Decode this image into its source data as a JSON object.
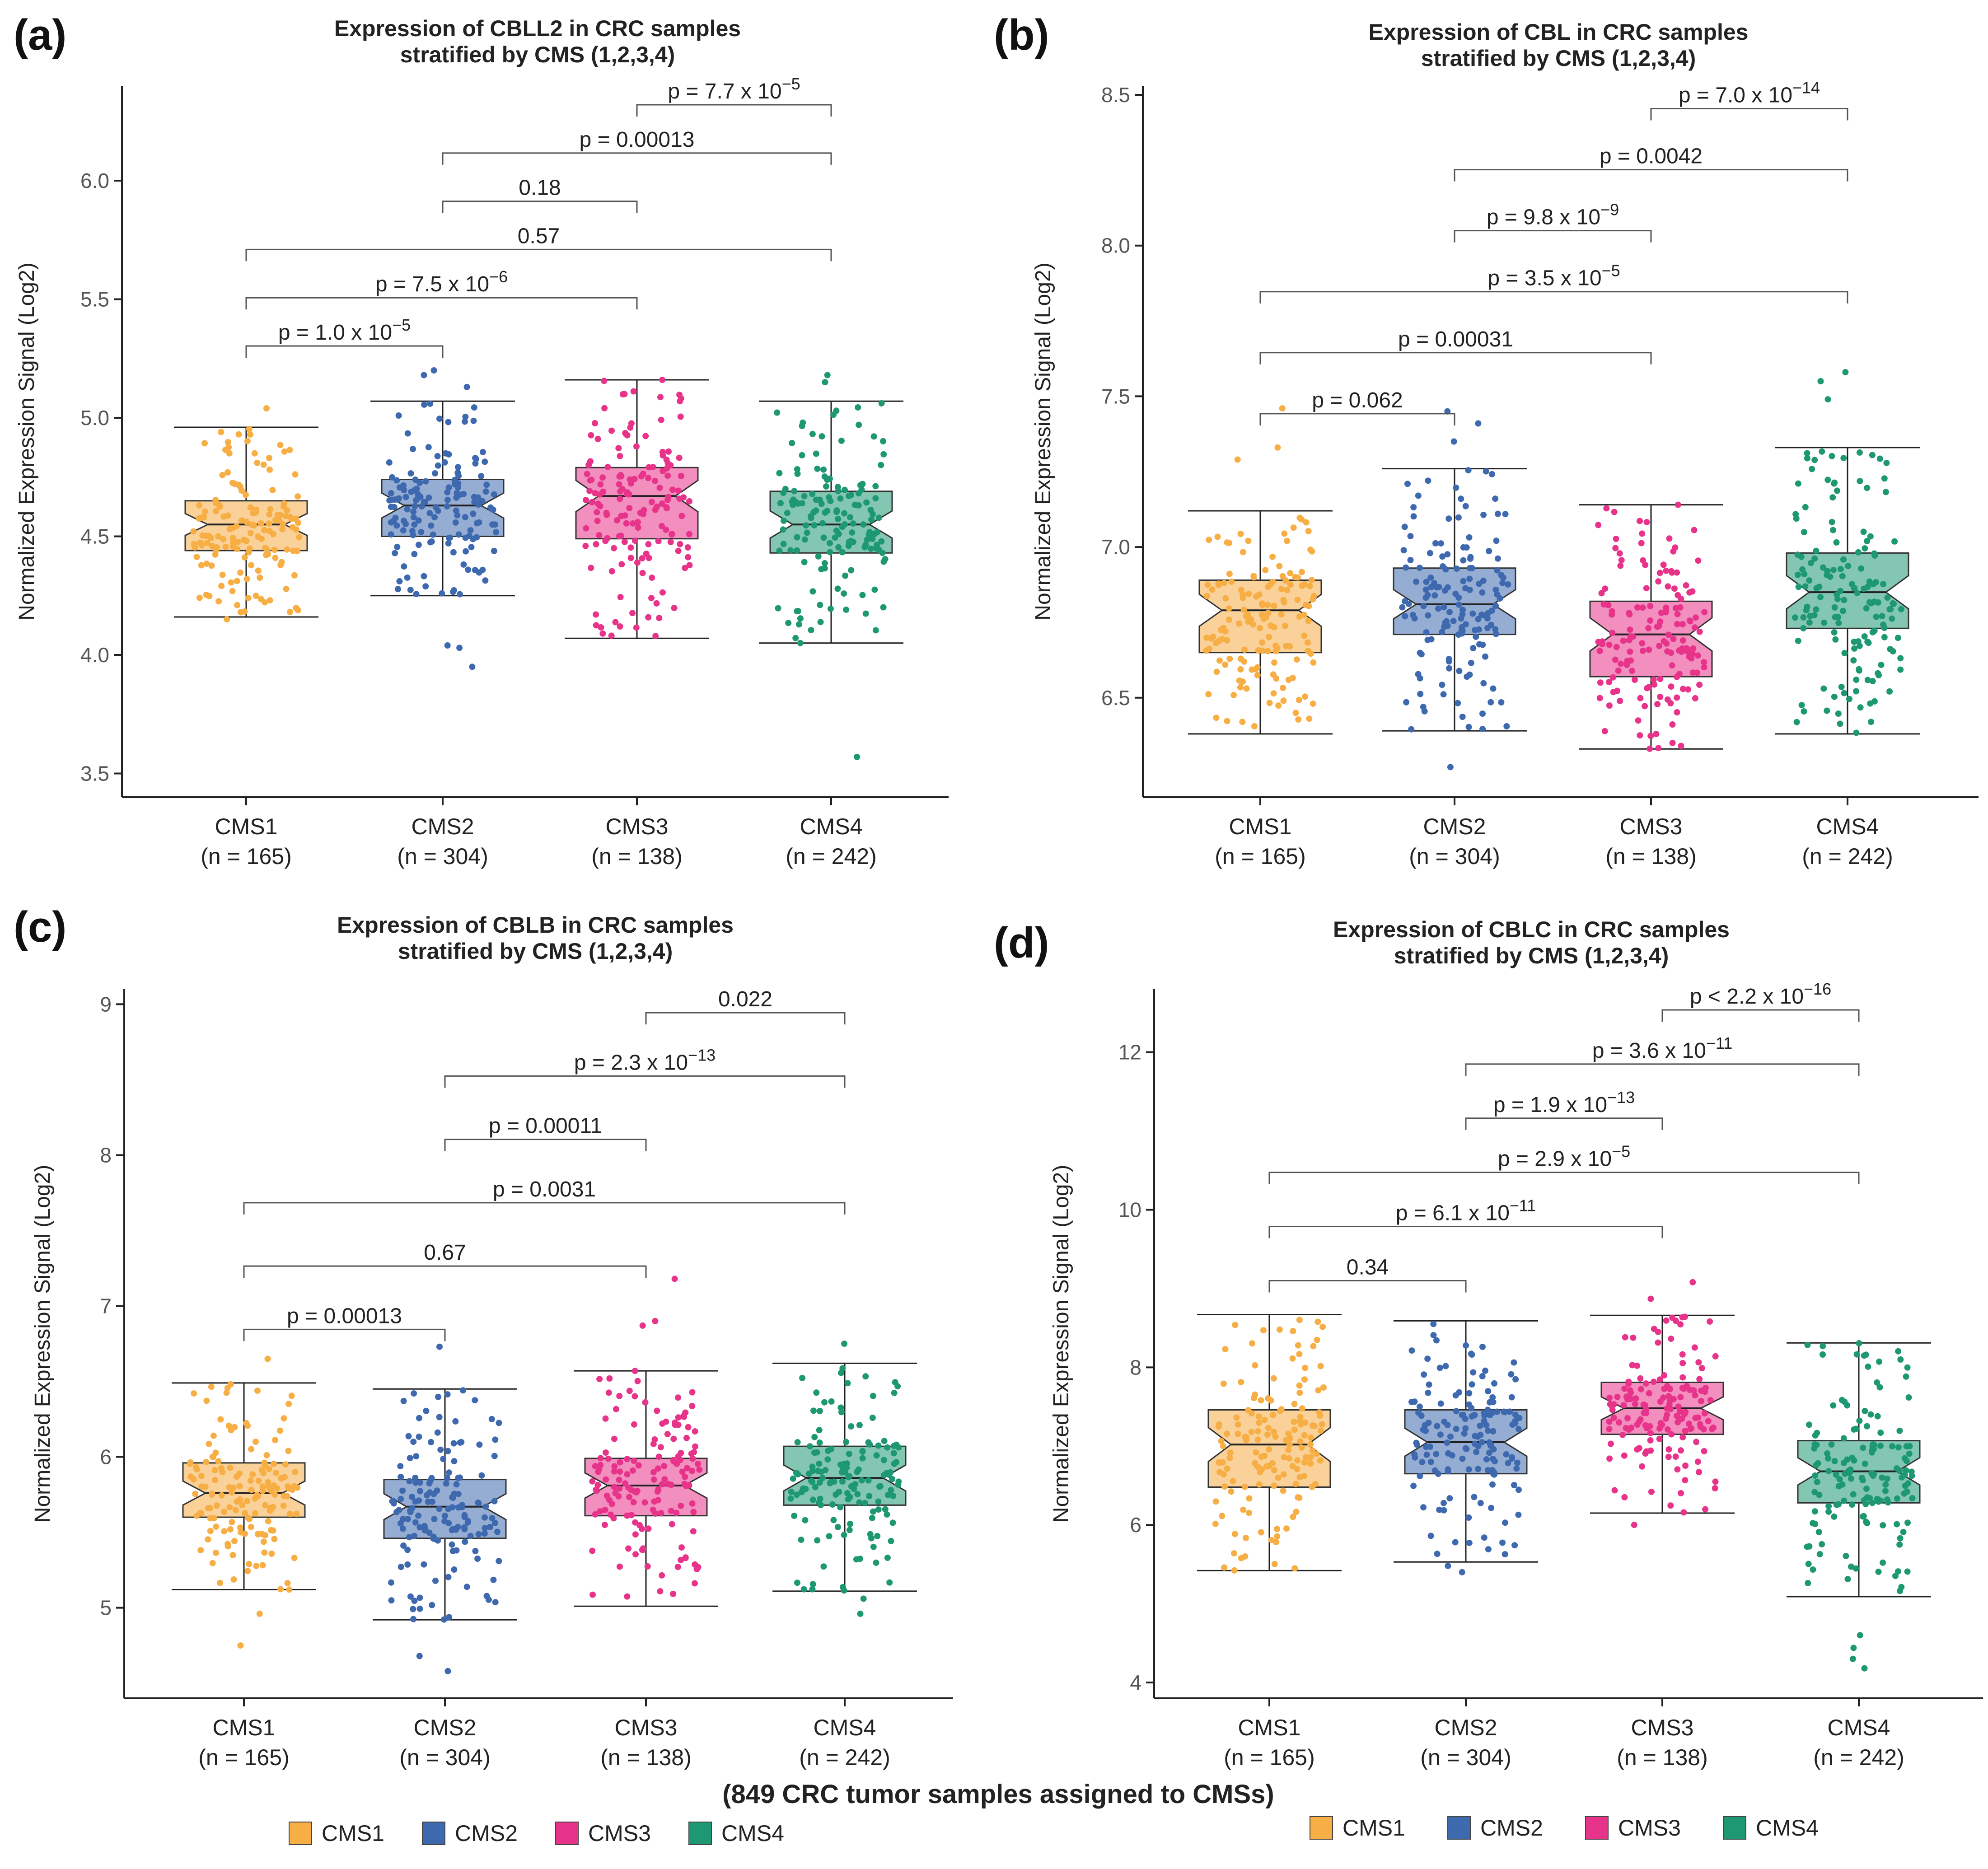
{
  "colors": {
    "CMS1": "#F6AE45",
    "CMS2": "#3E69AF",
    "CMS3": "#E7348A",
    "CMS4": "#1E9872",
    "axis": "#222222",
    "text": "#222222",
    "muted": "#555555"
  },
  "ylabel": "Normalized Expression Signal (Log2)",
  "categories": [
    "CMS1",
    "CMS2",
    "CMS3",
    "CMS4"
  ],
  "sample_sizes": [
    "(n = 165)",
    "(n = 304)",
    "(n = 138)",
    "(n = 242)"
  ],
  "xlabel": "(849 CRC tumor samples assigned to CMSs)",
  "legend": {
    "left": [
      "CMS1",
      "CMS2",
      "CMS3",
      "CMS4"
    ],
    "right": [
      "CMS1",
      "CMS2",
      "CMS3",
      "CMS4"
    ]
  },
  "chart_data": [
    {
      "panel": "(a)",
      "type": "boxplot",
      "title": [
        "Expression of CBLL2 in CRC samples",
        "stratified by CMS (1,2,3,4)"
      ],
      "yticks": [
        3.5,
        4.0,
        4.5,
        5.0,
        5.5,
        6.0
      ],
      "ylim": [
        3.4,
        6.4
      ],
      "boxes": [
        {
          "category": "CMS1",
          "min": 4.16,
          "q1": 4.44,
          "median": 4.55,
          "q3": 4.65,
          "max": 4.96,
          "points": [
            5.04,
            4.94,
            4.24,
            4.21,
            4.15,
            4.23
          ]
        },
        {
          "category": "CMS2",
          "min": 4.25,
          "q1": 4.5,
          "median": 4.63,
          "q3": 4.74,
          "max": 5.07,
          "points": [
            5.2,
            5.18,
            5.13,
            4.04,
            4.03,
            3.95
          ]
        },
        {
          "category": "CMS3",
          "min": 4.07,
          "q1": 4.49,
          "median": 4.67,
          "q3": 4.79,
          "max": 5.16,
          "points": [
            5.16,
            5.1,
            4.12,
            4.08
          ]
        },
        {
          "category": "CMS4",
          "min": 4.05,
          "q1": 4.43,
          "median": 4.55,
          "q3": 4.69,
          "max": 5.07,
          "points": [
            5.18,
            5.15,
            5.03,
            4.05,
            3.57
          ]
        }
      ],
      "brackets": [
        {
          "from": "CMS1",
          "to": "CMS2",
          "label": "p = 1.0 x 10",
          "exp": "−5"
        },
        {
          "from": "CMS1",
          "to": "CMS3",
          "label": "p = 7.5 x 10",
          "exp": "−6"
        },
        {
          "from": "CMS1",
          "to": "CMS4",
          "label": "0.57",
          "exp": ""
        },
        {
          "from": "CMS2",
          "to": "CMS3",
          "label": "0.18",
          "exp": ""
        },
        {
          "from": "CMS2",
          "to": "CMS4",
          "label": "p = 0.00013",
          "exp": ""
        },
        {
          "from": "CMS3",
          "to": "CMS4",
          "label": "p = 7.7 x 10",
          "exp": "−5"
        }
      ]
    },
    {
      "panel": "(b)",
      "type": "boxplot",
      "title": [
        "Expression of CBL in CRC samples",
        "stratified by CMS (1,2,3,4)"
      ],
      "yticks": [
        6.5,
        7.0,
        7.5,
        8.0,
        8.5
      ],
      "ylim": [
        6.17,
        8.53
      ],
      "boxes": [
        {
          "category": "CMS1",
          "min": 6.38,
          "q1": 6.65,
          "median": 6.79,
          "q3": 6.89,
          "max": 7.12,
          "points": [
            7.46,
            7.33,
            7.29,
            6.42
          ]
        },
        {
          "category": "CMS2",
          "min": 6.39,
          "q1": 6.71,
          "median": 6.81,
          "q3": 6.93,
          "max": 7.26,
          "points": [
            7.45,
            7.41,
            7.35,
            6.27
          ]
        },
        {
          "category": "CMS3",
          "min": 6.33,
          "q1": 6.57,
          "median": 6.71,
          "q3": 6.82,
          "max": 7.14,
          "points": [
            7.14,
            6.34,
            6.35
          ]
        },
        {
          "category": "CMS4",
          "min": 6.38,
          "q1": 6.73,
          "median": 6.85,
          "q3": 6.98,
          "max": 7.33,
          "points": [
            7.58,
            7.55,
            7.49,
            6.42
          ]
        }
      ],
      "brackets": [
        {
          "from": "CMS1",
          "to": "CMS2",
          "label": "p = 0.062",
          "exp": ""
        },
        {
          "from": "CMS1",
          "to": "CMS3",
          "label": "p = 0.00031",
          "exp": ""
        },
        {
          "from": "CMS1",
          "to": "CMS4",
          "label": "p = 3.5 x 10",
          "exp": "−5"
        },
        {
          "from": "CMS2",
          "to": "CMS3",
          "label": "p = 9.8 x 10",
          "exp": "−9"
        },
        {
          "from": "CMS2",
          "to": "CMS4",
          "label": "p = 0.0042",
          "exp": ""
        },
        {
          "from": "CMS3",
          "to": "CMS4",
          "label": "p = 7.0 x 10",
          "exp": "−14"
        }
      ]
    },
    {
      "panel": "(c)",
      "type": "boxplot",
      "title": [
        "Expression of CBLB in CRC samples",
        "stratified by CMS (1,2,3,4)"
      ],
      "yticks": [
        5,
        6,
        7,
        8,
        9
      ],
      "ylim": [
        4.4,
        9.1
      ],
      "boxes": [
        {
          "category": "CMS1",
          "min": 5.12,
          "q1": 5.6,
          "median": 5.76,
          "q3": 5.96,
          "max": 6.49,
          "points": [
            6.65,
            4.75,
            4.96
          ]
        },
        {
          "category": "CMS2",
          "min": 4.92,
          "q1": 5.46,
          "median": 5.67,
          "q3": 5.85,
          "max": 6.45,
          "points": [
            6.73,
            4.58,
            4.68
          ]
        },
        {
          "category": "CMS3",
          "min": 5.01,
          "q1": 5.61,
          "median": 5.81,
          "q3": 5.99,
          "max": 6.57,
          "points": [
            7.18,
            6.9,
            6.87
          ]
        },
        {
          "category": "CMS4",
          "min": 5.11,
          "q1": 5.68,
          "median": 5.86,
          "q3": 6.07,
          "max": 6.62,
          "points": [
            6.75,
            4.96,
            5.06
          ]
        }
      ],
      "brackets": [
        {
          "from": "CMS1",
          "to": "CMS2",
          "label": "p = 0.00013",
          "exp": ""
        },
        {
          "from": "CMS1",
          "to": "CMS3",
          "label": "0.67",
          "exp": ""
        },
        {
          "from": "CMS1",
          "to": "CMS4",
          "label": "p = 0.0031",
          "exp": ""
        },
        {
          "from": "CMS2",
          "to": "CMS3",
          "label": "p = 0.00011",
          "exp": ""
        },
        {
          "from": "CMS2",
          "to": "CMS4",
          "label": "p = 2.3 x 10",
          "exp": "−13"
        },
        {
          "from": "CMS3",
          "to": "CMS4",
          "label": "0.022",
          "exp": ""
        }
      ]
    },
    {
      "panel": "(d)",
      "type": "boxplot",
      "title": [
        "Expression of CBLC in CRC samples",
        "stratified by CMS (1,2,3,4)"
      ],
      "yticks": [
        4,
        6,
        8,
        10,
        12
      ],
      "ylim": [
        3.8,
        12.8
      ],
      "boxes": [
        {
          "category": "CMS1",
          "min": 5.42,
          "q1": 6.48,
          "median": 7.02,
          "q3": 7.46,
          "max": 8.67,
          "points": [
            5.45,
            5.6
          ]
        },
        {
          "category": "CMS2",
          "min": 5.53,
          "q1": 6.65,
          "median": 7.05,
          "q3": 7.46,
          "max": 8.59,
          "points": [
            5.4,
            5.48
          ]
        },
        {
          "category": "CMS3",
          "min": 6.15,
          "q1": 7.15,
          "median": 7.48,
          "q3": 7.81,
          "max": 8.66,
          "points": [
            9.08,
            8.87,
            6.0
          ]
        },
        {
          "category": "CMS4",
          "min": 5.09,
          "q1": 6.28,
          "median": 6.68,
          "q3": 7.07,
          "max": 8.31,
          "points": [
            4.6,
            4.44,
            4.3,
            4.18
          ]
        }
      ],
      "brackets": [
        {
          "from": "CMS1",
          "to": "CMS2",
          "label": "0.34",
          "exp": ""
        },
        {
          "from": "CMS1",
          "to": "CMS3",
          "label": "p = 6.1 x 10",
          "exp": "−11"
        },
        {
          "from": "CMS1",
          "to": "CMS4",
          "label": "p = 2.9 x 10",
          "exp": "−5"
        },
        {
          "from": "CMS2",
          "to": "CMS3",
          "label": "p = 1.9 x 10",
          "exp": "−13"
        },
        {
          "from": "CMS2",
          "to": "CMS4",
          "label": "p = 3.6 x 10",
          "exp": "−11"
        },
        {
          "from": "CMS3",
          "to": "CMS4",
          "label": "p < 2.2 x 10",
          "exp": "−16"
        }
      ]
    }
  ]
}
